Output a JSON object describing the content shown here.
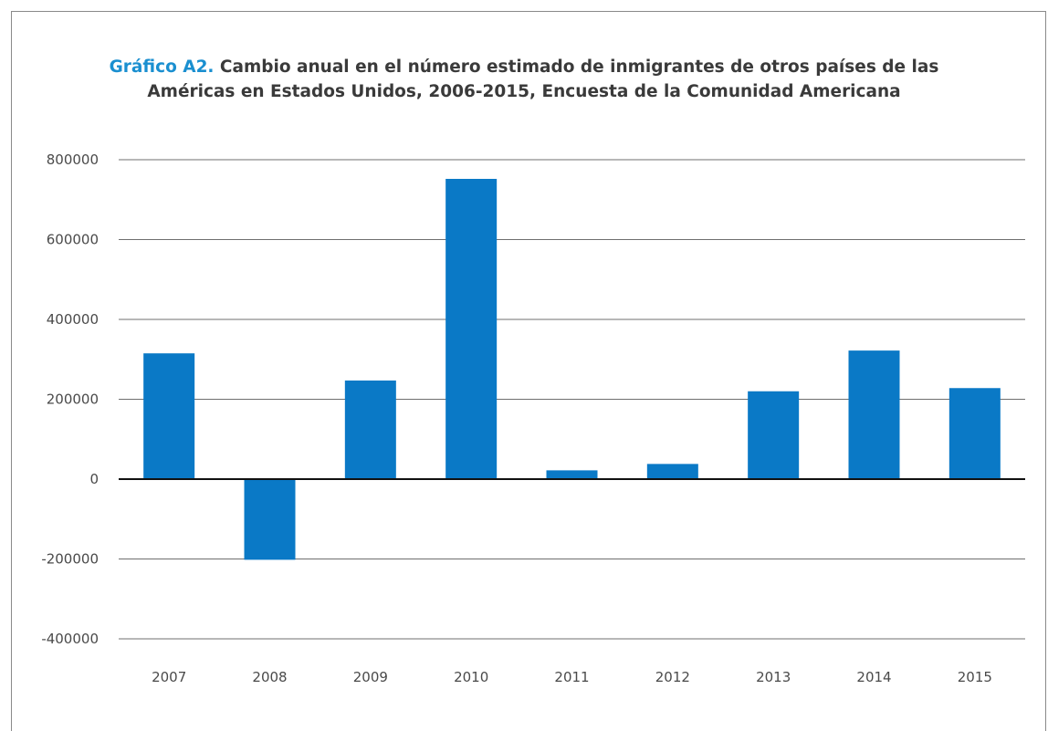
{
  "chart_data": {
    "type": "bar",
    "title_lead": "Gráfico A2.",
    "title_line1": "Cambio anual en el número estimado de inmigrantes de otros países de las",
    "title_line2": "Américas en Estados Unidos, 2006-2015, Encuesta de la Comunidad Americana",
    "xlabel": "",
    "ylabel": "",
    "categories": [
      "2007",
      "2008",
      "2009",
      "2010",
      "2011",
      "2012",
      "2013",
      "2014",
      "2015"
    ],
    "values": [
      315000,
      -202000,
      247000,
      752000,
      22000,
      38000,
      220000,
      322000,
      228000
    ],
    "ylim": [
      -400000,
      800000
    ],
    "yticks": [
      800000,
      600000,
      400000,
      200000,
      0,
      -200000,
      -400000
    ],
    "ytick_labels": [
      "800000",
      "600000",
      "400000",
      "200000",
      "0",
      "-200000",
      "-400000"
    ],
    "bar_color": "#0a79c6",
    "grid": true,
    "legend": "none"
  }
}
